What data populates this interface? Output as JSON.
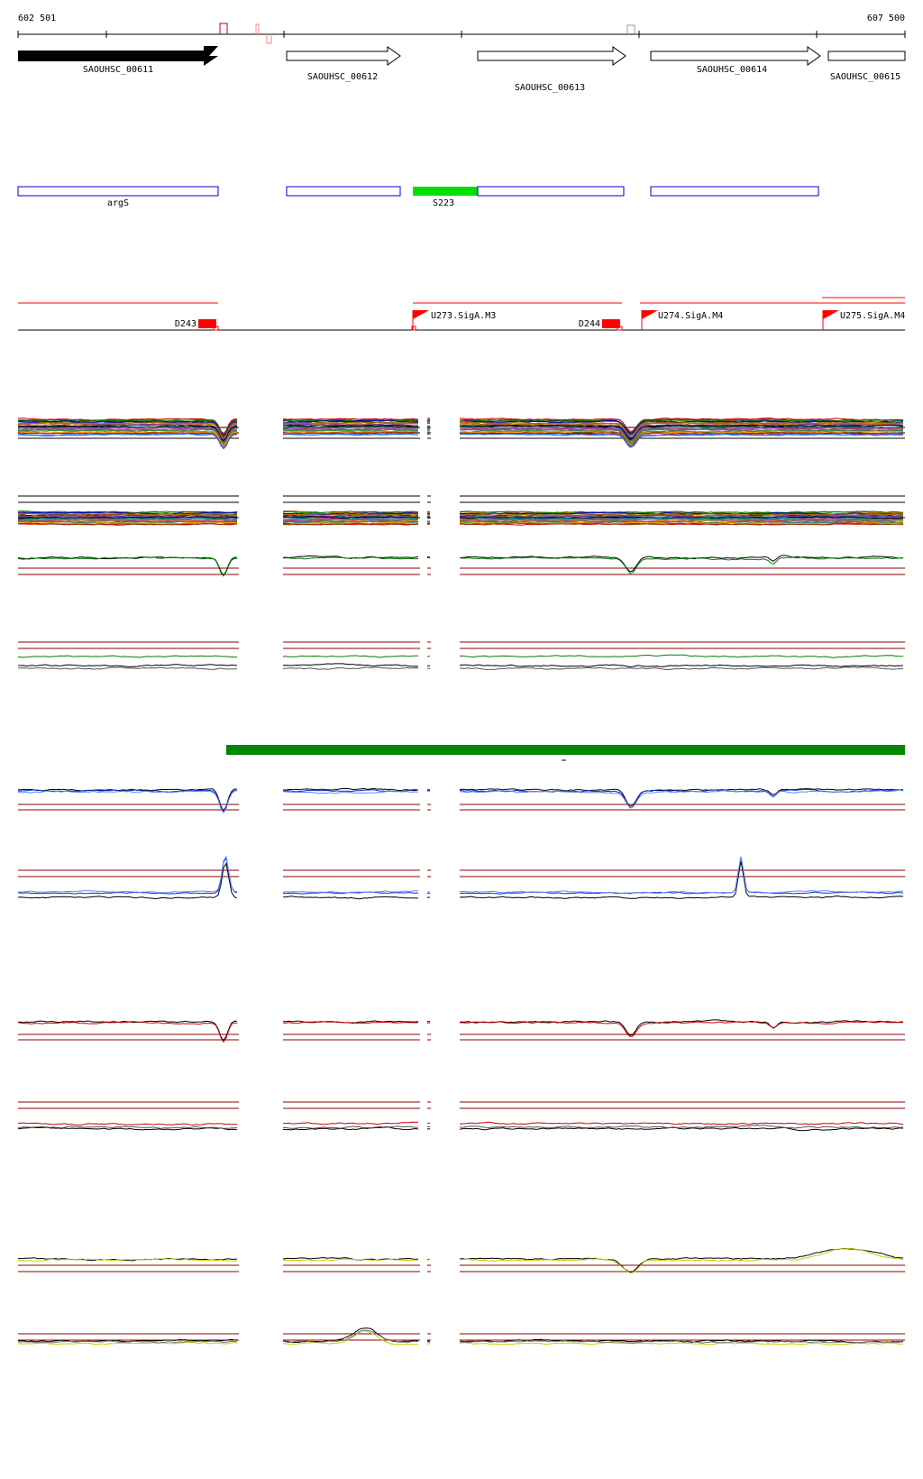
{
  "coords": {
    "start": "602 501",
    "end": "607 500"
  },
  "genes": [
    {
      "name": "SAOUHSC_00611",
      "direction": "forward",
      "filled": true
    },
    {
      "name": "SAOUHSC_00612",
      "direction": "forward",
      "filled": false
    },
    {
      "name": "SAOUHSC_00613",
      "direction": "forward",
      "filled": false
    },
    {
      "name": "SAOUHSC_00614",
      "direction": "forward",
      "filled": false
    },
    {
      "name": "SAOUHSC_00615",
      "direction": "forward",
      "filled": false
    }
  ],
  "operons": [
    {
      "label": "argS"
    },
    {
      "label": ""
    },
    {
      "label": "S223",
      "highlight": true
    },
    {
      "label": ""
    }
  ],
  "features": [
    {
      "label": "D243",
      "kind": "terminator"
    },
    {
      "label": "U273.SigA.M3",
      "kind": "promoter"
    },
    {
      "label": "D244",
      "kind": "terminator"
    },
    {
      "label": "U274.SigA.M4",
      "kind": "promoter"
    },
    {
      "label": "U275.SigA.M4",
      "kind": "promoter"
    }
  ],
  "track_colors": {
    "gene": "#000000",
    "operon": "#0000cc",
    "operon_highlight": "#00e000",
    "feature": "#ff0000",
    "expression_green": "#008000",
    "condition_bar": "#008800",
    "expression_blue": "#0033cc",
    "expression_red": "#cc0000",
    "expression_yellow": "#cccc00",
    "threshold": "#8b0000"
  }
}
